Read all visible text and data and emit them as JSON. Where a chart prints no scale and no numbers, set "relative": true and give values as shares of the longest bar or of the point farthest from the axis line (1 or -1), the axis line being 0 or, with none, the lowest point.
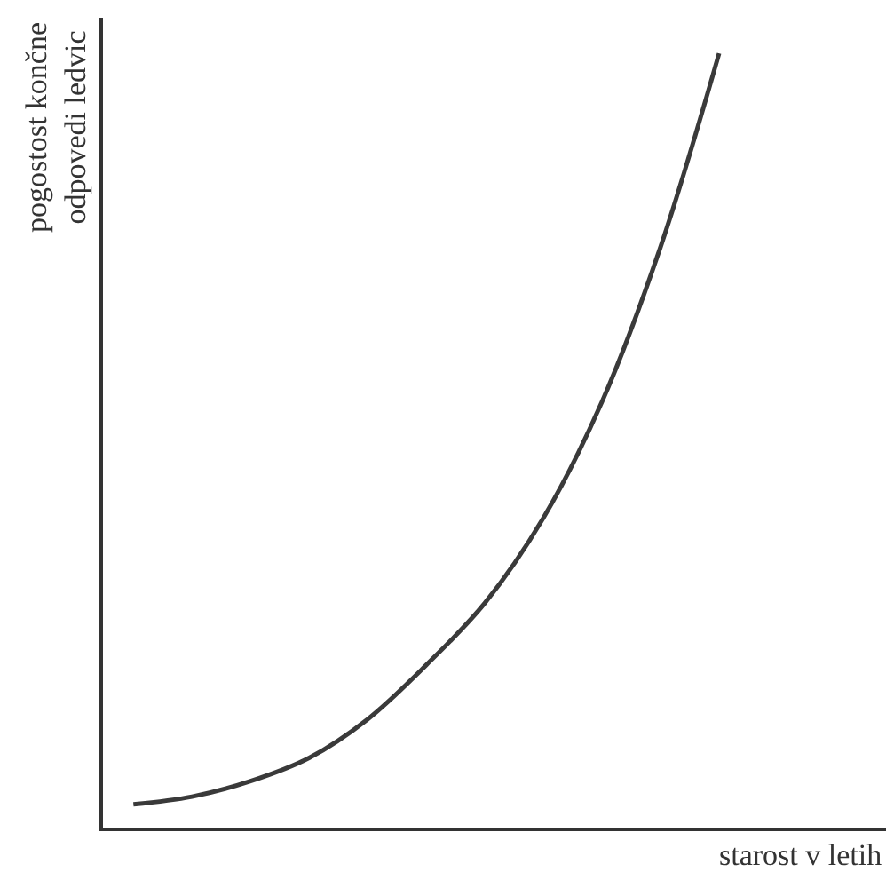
{
  "chart_data": {
    "type": "line",
    "relative": true,
    "xlabel": "starost v letih",
    "ylabel": "pogostost končne\nodpovedi ledvic",
    "categories": [
      null,
      null,
      null,
      null,
      null,
      null,
      null,
      null,
      null,
      null,
      null
    ],
    "series": [
      {
        "color": "#3a3a3a",
        "values": [
          0.03,
          0.04,
          0.06,
          0.09,
          0.14,
          0.21,
          0.29,
          0.4,
          0.55,
          0.75,
          1
        ]
      }
    ]
  }
}
